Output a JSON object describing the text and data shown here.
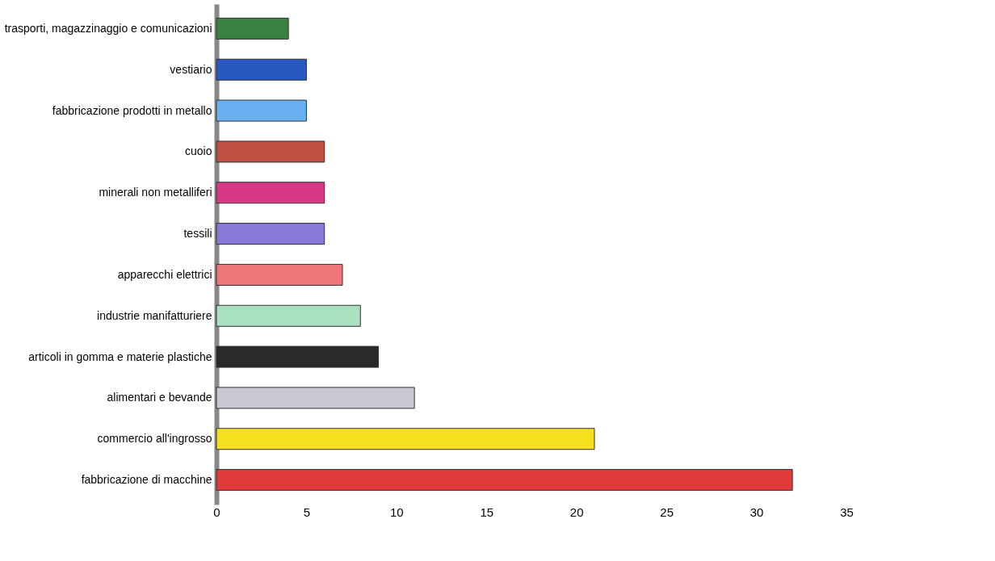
{
  "chart_data": {
    "type": "bar",
    "orientation": "horizontal",
    "categories": [
      "trasporti, magazzinaggio e comunicazioni",
      "vestiario",
      "fabbricazione prodotti in metallo",
      "cuoio",
      "minerali non metalliferi",
      "tessili",
      "apparecchi elettrici",
      "industrie manifatturiere",
      "articoli in gomma e materie plastiche",
      "alimentari e bevande",
      "commercio all'ingrosso",
      "fabbricazione di macchine"
    ],
    "values": [
      4,
      5,
      5,
      6,
      6,
      6,
      7,
      8,
      9,
      11,
      21,
      32
    ],
    "colors": [
      "#3a8040",
      "#2858c0",
      "#68b0f0",
      "#c05040",
      "#d83888",
      "#8878d8",
      "#f07878",
      "#a8e0c0",
      "#2a2a2a",
      "#c8c8d0",
      "#f5e020",
      "#e23a3a"
    ],
    "xlim": [
      0,
      35
    ],
    "xticks": [
      0,
      5,
      10,
      15,
      20,
      25,
      30,
      35
    ],
    "grid": false
  }
}
